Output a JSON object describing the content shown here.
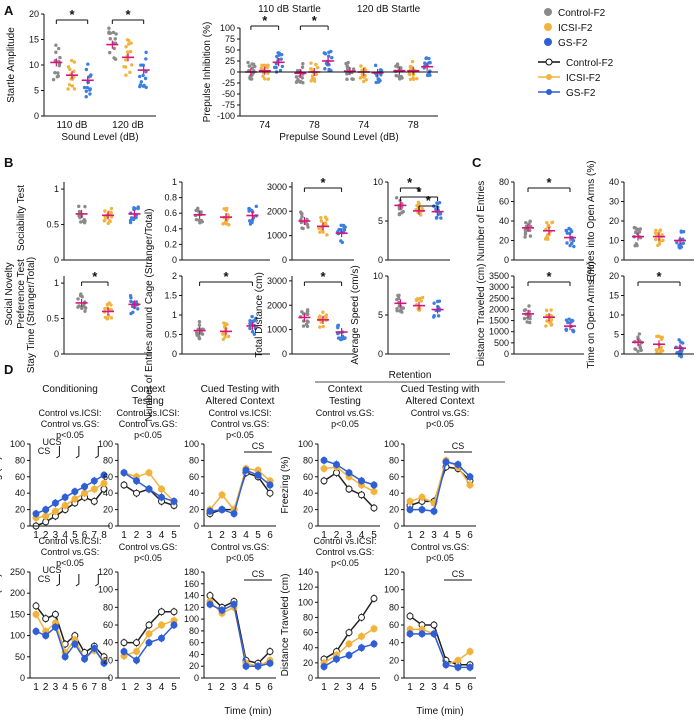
{
  "colors": {
    "control": "#8a8a8a",
    "icsi": "#f2b33d",
    "gs": "#2f5fd6",
    "gs_dot": "#3b7fe0",
    "sem": "#d6147a",
    "axis": "#111111"
  },
  "panel_labels": {
    "a": "A",
    "b": "B",
    "c": "C",
    "d": "D"
  },
  "legend": {
    "dots": [
      "Control-F2",
      "ICSI-F2",
      "GS-F2"
    ],
    "lines": [
      "Control-F2",
      "ICSI-F2",
      "GS-F2"
    ]
  },
  "row_labels": {
    "sociability": "Sociability Test",
    "novelty_1": "Social Novelty",
    "novelty_2": "Preference Test"
  },
  "headers_d": {
    "conditioning": "Conditioning",
    "context_1": "Context",
    "context_2": "Testing",
    "cued_1": "Cued Testing with",
    "cued_2": "Altered Context",
    "retention": "Retention",
    "ucs": "UCS",
    "cs": "CS",
    "time_label": "Time (min)"
  },
  "stats_d": {
    "ctrl_icsi": "Control vs.ICSI:",
    "ctrl_gs": "Control vs.GS:",
    "p": "p<0.05"
  },
  "chart_data": [
    {
      "id": "A1",
      "type": "scatter",
      "ylabel": "Startle Amplitude",
      "xlabel": "Sound Level (dB)",
      "categories": [
        "110 dB",
        "120 dB"
      ],
      "yticks": [
        "0",
        "5",
        "10",
        "15",
        "20"
      ],
      "ylim": [
        0,
        20
      ],
      "groups": [
        {
          "name": "Control-F2",
          "means": [
            10.5,
            14
          ]
        },
        {
          "name": "ICSI-F2",
          "means": [
            8,
            11.5
          ]
        },
        {
          "name": "GS-F2",
          "means": [
            7,
            9
          ]
        }
      ],
      "significance": [
        {
          "label": "*",
          "category": "110 dB",
          "between": [
            "Control-F2",
            "GS-F2"
          ]
        },
        {
          "label": "*",
          "category": "120 dB",
          "between": [
            "Control-F2",
            "GS-F2"
          ]
        }
      ]
    },
    {
      "id": "A2",
      "type": "scatter",
      "ylabel": "Prepulse Inhibition (%)",
      "xlabel": "Prepulse Sound Level (dB)",
      "top_labels": [
        "110 dB Startle",
        "120 dB Startle"
      ],
      "categories": [
        "74",
        "78",
        "74",
        "78"
      ],
      "yticks": [
        "100",
        "75",
        "50",
        "25",
        "0",
        "-25",
        "-50",
        "-75",
        "-100"
      ],
      "ylim": [
        -100,
        100
      ],
      "groups": [
        {
          "name": "Control-F2",
          "means": [
            0,
            -3,
            2,
            3
          ]
        },
        {
          "name": "ICSI-F2",
          "means": [
            3,
            0,
            0,
            3
          ]
        },
        {
          "name": "GS-F2",
          "means": [
            22,
            25,
            -2,
            12
          ]
        }
      ],
      "significance": [
        {
          "label": "*",
          "category": "74",
          "between": [
            "Control-F2",
            "GS-F2"
          ]
        },
        {
          "label": "*",
          "category": "78",
          "between": [
            "Control-F2",
            "GS-F2"
          ]
        }
      ]
    },
    {
      "id": "B1",
      "type": "scatter",
      "ylabel": "",
      "yticks": [
        "0",
        "0.5",
        "1"
      ],
      "ylim": [
        0,
        1.1
      ],
      "groups": [
        {
          "name": "Control-F2",
          "mean": 0.65
        },
        {
          "name": "ICSI-F2",
          "mean": 0.63
        },
        {
          "name": "GS-F2",
          "mean": 0.65
        }
      ],
      "significance": []
    },
    {
      "id": "B2",
      "type": "scatter",
      "ylabel": "",
      "yticks": [
        "0",
        "0.2",
        "0.4",
        "0.6",
        "0.8",
        "1"
      ],
      "ylim": [
        0,
        1
      ],
      "groups": [
        {
          "name": "Control-F2",
          "mean": 0.58
        },
        {
          "name": "ICSI-F2",
          "mean": 0.55
        },
        {
          "name": "GS-F2",
          "mean": 0.57
        }
      ],
      "significance": []
    },
    {
      "id": "B3",
      "type": "scatter",
      "ylabel": "",
      "yticks": [
        "0",
        "1000",
        "2000",
        "3000"
      ],
      "ylim": [
        0,
        3200
      ],
      "groups": [
        {
          "name": "Control-F2",
          "mean": 1600
        },
        {
          "name": "ICSI-F2",
          "mean": 1380
        },
        {
          "name": "GS-F2",
          "mean": 1100
        }
      ],
      "significance": [
        {
          "label": "*",
          "between": [
            "Control-F2",
            "GS-F2"
          ]
        }
      ]
    },
    {
      "id": "B4",
      "type": "scatter",
      "ylabel": "",
      "yticks": [
        "0",
        "5",
        "10"
      ],
      "ylim": [
        0,
        10
      ],
      "groups": [
        {
          "name": "Control-F2",
          "mean": 7
        },
        {
          "name": "ICSI-F2",
          "mean": 6.3
        },
        {
          "name": "GS-F2",
          "mean": 6.2
        }
      ],
      "significance": [
        {
          "label": "*",
          "between": [
            "Control-F2",
            "ICSI-F2"
          ]
        },
        {
          "label": "*",
          "between": [
            "Control-F2",
            "GS-F2"
          ]
        },
        {
          "label": "*",
          "between": [
            "ICSI-F2",
            "GS-F2"
          ]
        }
      ]
    },
    {
      "id": "B5",
      "type": "scatter",
      "ylabel": "Stay Time (Stranger/Total)",
      "yticks": [
        "0",
        "0.5",
        "1"
      ],
      "ylim": [
        0,
        1.1
      ],
      "groups": [
        {
          "name": "Control-F2",
          "mean": 0.72
        },
        {
          "name": "ICSI-F2",
          "mean": 0.6
        },
        {
          "name": "GS-F2",
          "mean": 0.7
        }
      ],
      "significance": [
        {
          "label": "*",
          "between": [
            "Control-F2",
            "ICSI-F2"
          ]
        }
      ]
    },
    {
      "id": "B6",
      "type": "scatter",
      "ylabel": "Number of Entries around Cage (Stranger/Total)",
      "yticks": [
        "0",
        "0.5",
        "1",
        "1.5",
        "2"
      ],
      "ylim": [
        0,
        2
      ],
      "groups": [
        {
          "name": "Control-F2",
          "mean": 0.6
        },
        {
          "name": "ICSI-F2",
          "mean": 0.58
        },
        {
          "name": "GS-F2",
          "mean": 0.72
        }
      ],
      "significance": [
        {
          "label": "*",
          "between": [
            "Control-F2",
            "GS-F2"
          ]
        }
      ]
    },
    {
      "id": "B7",
      "type": "scatter",
      "ylabel": "Total Distance (cm)",
      "yticks": [
        "0",
        "1000",
        "2000",
        "3000"
      ],
      "ylim": [
        0,
        3200
      ],
      "groups": [
        {
          "name": "Control-F2",
          "mean": 1500
        },
        {
          "name": "ICSI-F2",
          "mean": 1400
        },
        {
          "name": "GS-F2",
          "mean": 900
        }
      ],
      "significance": [
        {
          "label": "*",
          "between": [
            "Control-F2",
            "GS-F2"
          ]
        }
      ]
    },
    {
      "id": "B8",
      "type": "scatter",
      "ylabel": "Average Speed (cm/s)",
      "yticks": [
        "0",
        "5",
        "10"
      ],
      "ylim": [
        0,
        10
      ],
      "groups": [
        {
          "name": "Control-F2",
          "mean": 6.5
        },
        {
          "name": "ICSI-F2",
          "mean": 6.2
        },
        {
          "name": "GS-F2",
          "mean": 5.7
        }
      ],
      "significance": []
    },
    {
      "id": "C1",
      "type": "scatter",
      "ylabel": "Number of Entries",
      "yticks": [
        "0",
        "20",
        "40",
        "60",
        "80"
      ],
      "ylim": [
        0,
        80
      ],
      "groups": [
        {
          "name": "Control-F2",
          "mean": 33
        },
        {
          "name": "ICSI-F2",
          "mean": 30
        },
        {
          "name": "GS-F2",
          "mean": 23
        }
      ],
      "significance": [
        {
          "label": "*",
          "between": [
            "Control-F2",
            "GS-F2"
          ]
        }
      ]
    },
    {
      "id": "C2",
      "type": "scatter",
      "ylabel": "Entries into Open Arms (%)",
      "yticks": [
        "0",
        "10",
        "20",
        "30",
        "40"
      ],
      "ylim": [
        0,
        40
      ],
      "groups": [
        {
          "name": "Control-F2",
          "mean": 12
        },
        {
          "name": "ICSI-F2",
          "mean": 12
        },
        {
          "name": "GS-F2",
          "mean": 10
        }
      ],
      "significance": []
    },
    {
      "id": "C3",
      "type": "scatter",
      "ylabel": "Distance Traveled (cm)",
      "yticks": [
        "0",
        "500",
        "1000",
        "1500",
        "2000",
        "2500",
        "3000",
        "3500"
      ],
      "ylim": [
        0,
        3500
      ],
      "groups": [
        {
          "name": "Control-F2",
          "mean": 1800
        },
        {
          "name": "ICSI-F2",
          "mean": 1650
        },
        {
          "name": "GS-F2",
          "mean": 1250
        }
      ],
      "significance": [
        {
          "label": "*",
          "between": [
            "Control-F2",
            "GS-F2"
          ]
        }
      ]
    },
    {
      "id": "C4",
      "type": "scatter",
      "ylabel": "Time on Open Arms (%)",
      "yticks": [
        "0",
        "5",
        "10",
        "15",
        "20"
      ],
      "ylim": [
        0,
        20
      ],
      "groups": [
        {
          "name": "Control-F2",
          "mean": 3
        },
        {
          "name": "ICSI-F2",
          "mean": 2.5
        },
        {
          "name": "GS-F2",
          "mean": 1.5
        }
      ],
      "significance": [
        {
          "label": "*",
          "between": [
            "Control-F2",
            "GS-F2"
          ]
        }
      ]
    },
    {
      "id": "D1",
      "type": "line",
      "ylabel": "Freezing (%)",
      "x": [
        "1",
        "2",
        "3",
        "4",
        "5",
        "6",
        "7",
        "8"
      ],
      "yticks": [
        "0",
        "20",
        "40",
        "60",
        "80",
        "100"
      ],
      "ylim": [
        0,
        100
      ],
      "series": [
        {
          "name": "Control-F2",
          "values": [
            0,
            5,
            12,
            20,
            28,
            35,
            30,
            45
          ]
        },
        {
          "name": "ICSI-F2",
          "values": [
            10,
            12,
            18,
            25,
            33,
            40,
            45,
            52
          ]
        },
        {
          "name": "GS-F2",
          "values": [
            15,
            20,
            28,
            35,
            42,
            48,
            55,
            62
          ]
        }
      ]
    },
    {
      "id": "D2",
      "type": "line",
      "x": [
        "1",
        "2",
        "3",
        "4",
        "5"
      ],
      "yticks": [
        "0",
        "20",
        "40",
        "60",
        "80",
        "100"
      ],
      "ylim": [
        0,
        100
      ],
      "series": [
        {
          "name": "Control-F2",
          "values": [
            50,
            40,
            45,
            30,
            25
          ]
        },
        {
          "name": "ICSI-F2",
          "values": [
            65,
            60,
            65,
            45,
            30
          ]
        },
        {
          "name": "GS-F2",
          "values": [
            65,
            55,
            45,
            35,
            30
          ]
        }
      ]
    },
    {
      "id": "D3",
      "type": "line",
      "x": [
        "1",
        "2",
        "3",
        "4",
        "5",
        "6"
      ],
      "yticks": [
        "0",
        "20",
        "40",
        "60",
        "80",
        "100"
      ],
      "ylim": [
        0,
        100
      ],
      "series": [
        {
          "name": "Control-F2",
          "values": [
            15,
            20,
            20,
            65,
            60,
            40
          ]
        },
        {
          "name": "ICSI-F2",
          "values": [
            20,
            38,
            20,
            70,
            68,
            55
          ]
        },
        {
          "name": "GS-F2",
          "values": [
            18,
            20,
            15,
            68,
            62,
            50
          ]
        }
      ]
    },
    {
      "id": "D4",
      "type": "line",
      "ylabel": "Freezing (%)",
      "x": [
        "1",
        "2",
        "3",
        "4",
        "5"
      ],
      "yticks": [
        "0",
        "20",
        "40",
        "60",
        "80",
        "100"
      ],
      "ylim": [
        0,
        100
      ],
      "series": [
        {
          "name": "Control-F2",
          "values": [
            55,
            65,
            45,
            38,
            22
          ]
        },
        {
          "name": "ICSI-F2",
          "values": [
            70,
            72,
            60,
            50,
            42
          ]
        },
        {
          "name": "GS-F2",
          "values": [
            80,
            75,
            65,
            55,
            50
          ]
        }
      ]
    },
    {
      "id": "D5",
      "type": "line",
      "x": [
        "1",
        "2",
        "3",
        "4",
        "5",
        "6"
      ],
      "yticks": [
        "0",
        "20",
        "40",
        "60",
        "80",
        "100"
      ],
      "ylim": [
        0,
        100
      ],
      "series": [
        {
          "name": "Control-F2",
          "values": [
            25,
            30,
            30,
            72,
            70,
            55
          ]
        },
        {
          "name": "ICSI-F2",
          "values": [
            30,
            35,
            28,
            80,
            72,
            50
          ]
        },
        {
          "name": "GS-F2",
          "values": [
            20,
            20,
            18,
            78,
            75,
            60
          ]
        }
      ]
    },
    {
      "id": "D6",
      "type": "line",
      "ylabel": "Distance Traveled (cm)",
      "x": [
        "1",
        "2",
        "3",
        "4",
        "5",
        "6",
        "7",
        "8"
      ],
      "yticks": [
        "0",
        "50",
        "100",
        "150",
        "200",
        "250"
      ],
      "ylim": [
        0,
        250
      ],
      "series": [
        {
          "name": "Control-F2",
          "values": [
            170,
            140,
            150,
            80,
            100,
            60,
            75,
            50
          ]
        },
        {
          "name": "ICSI-F2",
          "values": [
            150,
            110,
            130,
            60,
            90,
            45,
            65,
            40
          ]
        },
        {
          "name": "GS-F2",
          "values": [
            110,
            100,
            120,
            50,
            80,
            45,
            70,
            35
          ]
        }
      ]
    },
    {
      "id": "D7",
      "type": "line",
      "x": [
        "1",
        "2",
        "3",
        "4",
        "5"
      ],
      "yticks": [
        "0",
        "20",
        "40",
        "60",
        "80",
        "100",
        "120"
      ],
      "ylim": [
        0,
        120
      ],
      "series": [
        {
          "name": "Control-F2",
          "values": [
            40,
            40,
            60,
            75,
            75
          ]
        },
        {
          "name": "ICSI-F2",
          "values": [
            25,
            30,
            50,
            60,
            65
          ]
        },
        {
          "name": "GS-F2",
          "values": [
            30,
            20,
            40,
            45,
            60
          ]
        }
      ]
    },
    {
      "id": "D8",
      "type": "line",
      "x": [
        "1",
        "2",
        "3",
        "4",
        "5",
        "6"
      ],
      "yticks": [
        "0",
        "20",
        "40",
        "60",
        "80",
        "100",
        "120",
        "140",
        "160",
        "180"
      ],
      "ylim": [
        0,
        180
      ],
      "series": [
        {
          "name": "Control-F2",
          "values": [
            140,
            120,
            130,
            30,
            25,
            45
          ]
        },
        {
          "name": "ICSI-F2",
          "values": [
            130,
            110,
            120,
            25,
            20,
            30
          ]
        },
        {
          "name": "GS-F2",
          "values": [
            125,
            115,
            125,
            20,
            20,
            25
          ]
        }
      ]
    },
    {
      "id": "D9",
      "type": "line",
      "ylabel": "Distance Traveled (cm)",
      "x": [
        "1",
        "2",
        "3",
        "4",
        "5"
      ],
      "yticks": [
        "0",
        "20",
        "40",
        "60",
        "80",
        "100",
        "120",
        "140"
      ],
      "ylim": [
        0,
        140
      ],
      "series": [
        {
          "name": "Control-F2",
          "values": [
            25,
            35,
            60,
            80,
            105
          ]
        },
        {
          "name": "ICSI-F2",
          "values": [
            20,
            30,
            45,
            55,
            65
          ]
        },
        {
          "name": "GS-F2",
          "values": [
            15,
            25,
            30,
            40,
            45
          ]
        }
      ]
    },
    {
      "id": "D10",
      "type": "line",
      "x": [
        "1",
        "2",
        "3",
        "4",
        "5",
        "6"
      ],
      "yticks": [
        "0",
        "20",
        "40",
        "60",
        "80",
        "100",
        "120"
      ],
      "ylim": [
        0,
        120
      ],
      "series": [
        {
          "name": "Control-F2",
          "values": [
            70,
            60,
            60,
            20,
            15,
            15
          ]
        },
        {
          "name": "ICSI-F2",
          "values": [
            55,
            55,
            50,
            15,
            20,
            30
          ]
        },
        {
          "name": "GS-F2",
          "values": [
            50,
            50,
            50,
            15,
            12,
            12
          ]
        }
      ]
    }
  ]
}
